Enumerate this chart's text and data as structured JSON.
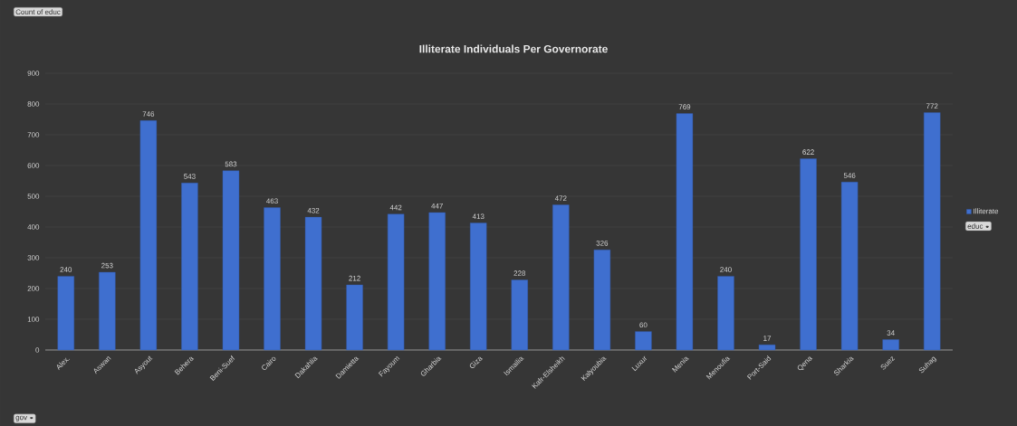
{
  "chart_data": {
    "type": "bar",
    "title": "Illiterate  Individuals  Per Governorate",
    "annotations": [
      "Count of educ"
    ],
    "xlabel": "gov",
    "legend_title": "educ",
    "categories": [
      "Alex.",
      "Aswan",
      "Asyout",
      "Behera",
      "Beni-Suef",
      "Cairo",
      "Dakahlia",
      "Damietta",
      "Fayoum",
      "Gharbia",
      "Giza",
      "Ismailia",
      "Kafr-Elsheikh",
      "Kalyoubia",
      "Luxur",
      "Menia",
      "Menoufia",
      "Port-Said",
      "Qena",
      "Sharkia",
      "Suez",
      "Suhag"
    ],
    "series": [
      {
        "name": "Illiterate",
        "color": "#3f6fcf",
        "values": [
          240,
          253,
          746,
          543,
          583,
          463,
          432,
          212,
          442,
          447,
          413,
          228,
          472,
          326,
          60,
          769,
          240,
          17,
          622,
          546,
          34,
          772
        ]
      }
    ],
    "ylim": [
      0,
      900
    ],
    "yticks": [
      0,
      100,
      200,
      300,
      400,
      500,
      600,
      700,
      800,
      900
    ],
    "grid": "y",
    "legend": "right",
    "data_labels": true
  }
}
